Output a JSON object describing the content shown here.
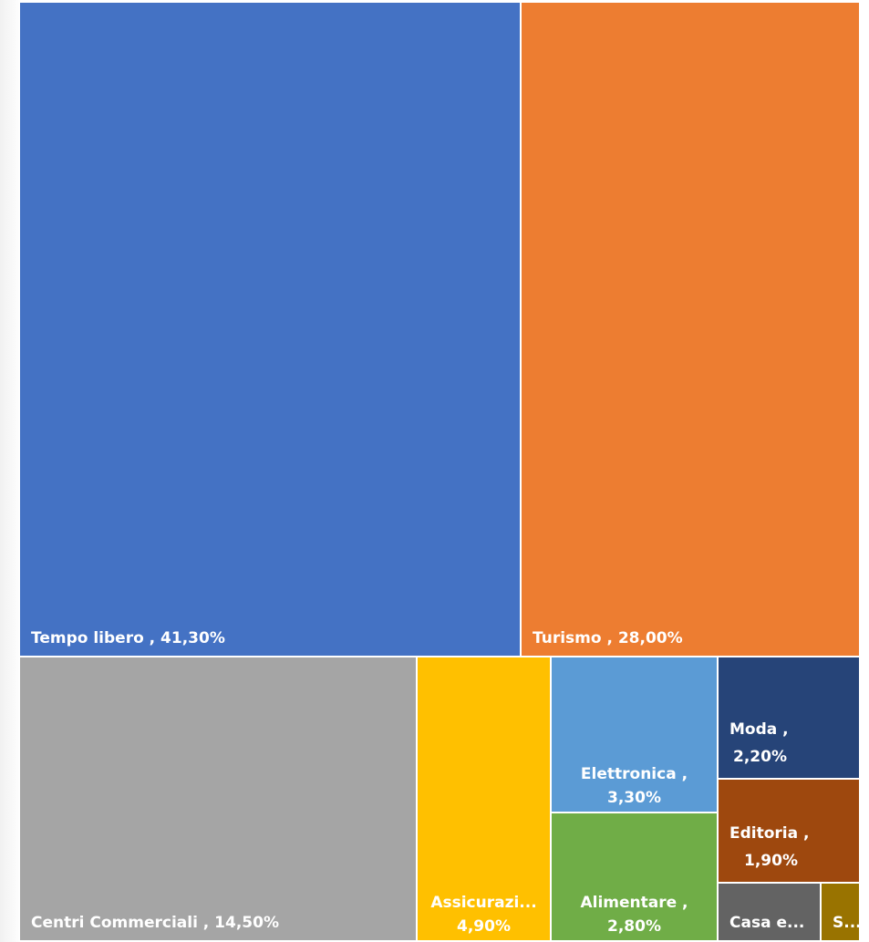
{
  "chart_data": {
    "type": "treemap",
    "title": "",
    "items": [
      {
        "name": "Tempo libero",
        "value": 41.3,
        "label": "Tempo libero , 41,30%",
        "color": "#4472C4"
      },
      {
        "name": "Turismo",
        "value": 28.0,
        "label": "Turismo , 28,00%",
        "color": "#ED7D31"
      },
      {
        "name": "Centri Commerciali",
        "value": 14.5,
        "label": "Centri Commerciali , 14,50%",
        "color": "#A5A5A5"
      },
      {
        "name": "Assicurazioni",
        "value": 4.9,
        "label_lines": [
          "Assicurazi...",
          "4,90%"
        ],
        "color": "#FFC000"
      },
      {
        "name": "Elettronica",
        "value": 3.3,
        "label_lines": [
          "Elettronica ,",
          "3,30%"
        ],
        "color": "#5B9BD5"
      },
      {
        "name": "Alimentare",
        "value": 2.8,
        "label_lines": [
          "Alimentare ,",
          "2,80%"
        ],
        "color": "#70AD47"
      },
      {
        "name": "Moda",
        "value": 2.2,
        "label_lines": [
          "Moda ,",
          "2,20%"
        ],
        "color": "#264478"
      },
      {
        "name": "Editoria",
        "value": 1.9,
        "label_lines": [
          "Editoria ,",
          "1,90%"
        ],
        "color": "#9E480E"
      },
      {
        "name": "Casa e...",
        "value": 0.7,
        "label_lines": [
          "Casa e..."
        ],
        "color": "#636363"
      },
      {
        "name": "S...",
        "value": 0.4,
        "label_lines": [
          "S..."
        ],
        "color": "#997300"
      }
    ]
  }
}
